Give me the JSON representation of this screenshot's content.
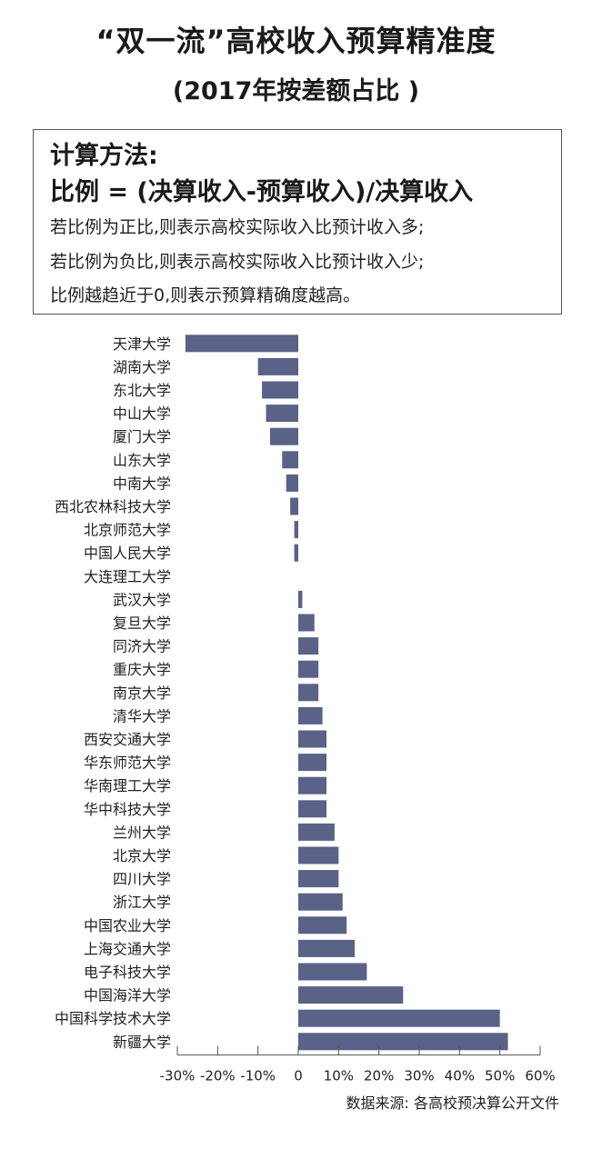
{
  "header": {
    "title": "“双一流”高校收入预算精准度",
    "subtitle": "(2017年按差额占比 )"
  },
  "method": {
    "heading": "计算方法:",
    "formula": "比例 = (决算收入-预算收入)/决算收入",
    "lines": [
      "若比例为正比,则表示高校实际收入比预计收入多;",
      "若比例为负比,则表示高校实际收入比预计收入少;",
      "比例越趋近于0,则表示预算精确度越高。"
    ]
  },
  "chart_data": {
    "type": "bar",
    "orientation": "horizontal",
    "title": "",
    "xlabel": "",
    "ylabel": "",
    "unit": "%",
    "xlim": [
      -30,
      60
    ],
    "xticks": [
      -30,
      -20,
      -10,
      0,
      10,
      20,
      30,
      40,
      50,
      60
    ],
    "xtick_labels": [
      "-30%",
      "-20%",
      "-10%",
      "0",
      "10%",
      "20%",
      "30%",
      "40%",
      "50%",
      "60%"
    ],
    "grid": false,
    "bar_color": "#5a6287",
    "categories": [
      "天津大学",
      "湖南大学",
      "东北大学",
      "中山大学",
      "厦门大学",
      "山东大学",
      "中南大学",
      "西北农林科技大学",
      "北京师范大学",
      "中国人民大学",
      "大连理工大学",
      "武汉大学",
      "复旦大学",
      "同济大学",
      "重庆大学",
      "南京大学",
      "清华大学",
      "西安交通大学",
      "华东师范大学",
      "华南理工大学",
      "华中科技大学",
      "兰州大学",
      "北京大学",
      "四川大学",
      "浙江大学",
      "中国农业大学",
      "上海交通大学",
      "电子科技大学",
      "中国海洋大学",
      "中国科学技术大学",
      "新疆大学"
    ],
    "values": [
      -28,
      -10,
      -9,
      -8,
      -7,
      -4,
      -3,
      -2,
      -1,
      -1,
      0,
      1,
      4,
      5,
      5,
      5,
      6,
      7,
      7,
      7,
      7,
      9,
      10,
      10,
      11,
      12,
      14,
      17,
      26,
      50,
      52
    ]
  },
  "footer": {
    "source": "数据来源: 各高校预决算公开文件"
  }
}
